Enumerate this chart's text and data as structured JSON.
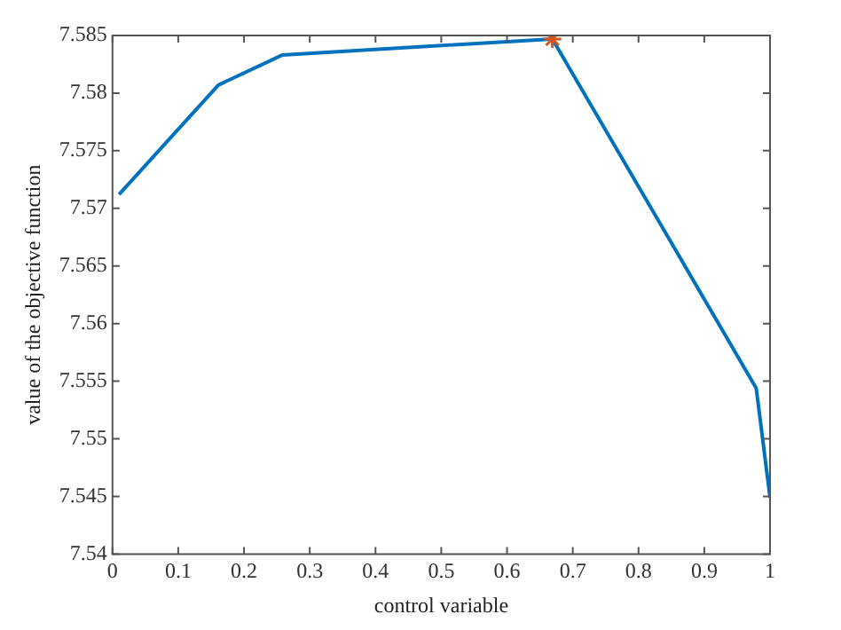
{
  "chart_data": {
    "type": "line",
    "xlabel": "control variable",
    "ylabel": "value of the objective function",
    "xlim": [
      0,
      1
    ],
    "xticks": [
      0,
      0.1,
      0.2,
      0.3,
      0.4,
      0.5,
      0.6,
      0.7,
      0.8,
      0.9,
      1
    ],
    "ylim": [
      7.54,
      7.585
    ],
    "yticks": [
      7.54,
      7.545,
      7.55,
      7.555,
      7.56,
      7.565,
      7.57,
      7.575,
      7.58,
      7.585
    ],
    "grid": false,
    "legend": false,
    "series": [
      {
        "color": "#0072bd",
        "marker": "none",
        "line_style": "solid",
        "x": [
          0.01,
          0.161,
          0.258,
          0.669,
          0.979,
          1.0
        ],
        "values": [
          7.5712,
          7.5807,
          7.5833,
          7.5847,
          7.5544,
          7.5449
        ]
      },
      {
        "type": "scatter",
        "color": "#d95319",
        "marker": "cross",
        "x": [
          0.669
        ],
        "values": [
          7.5847
        ]
      }
    ]
  }
}
